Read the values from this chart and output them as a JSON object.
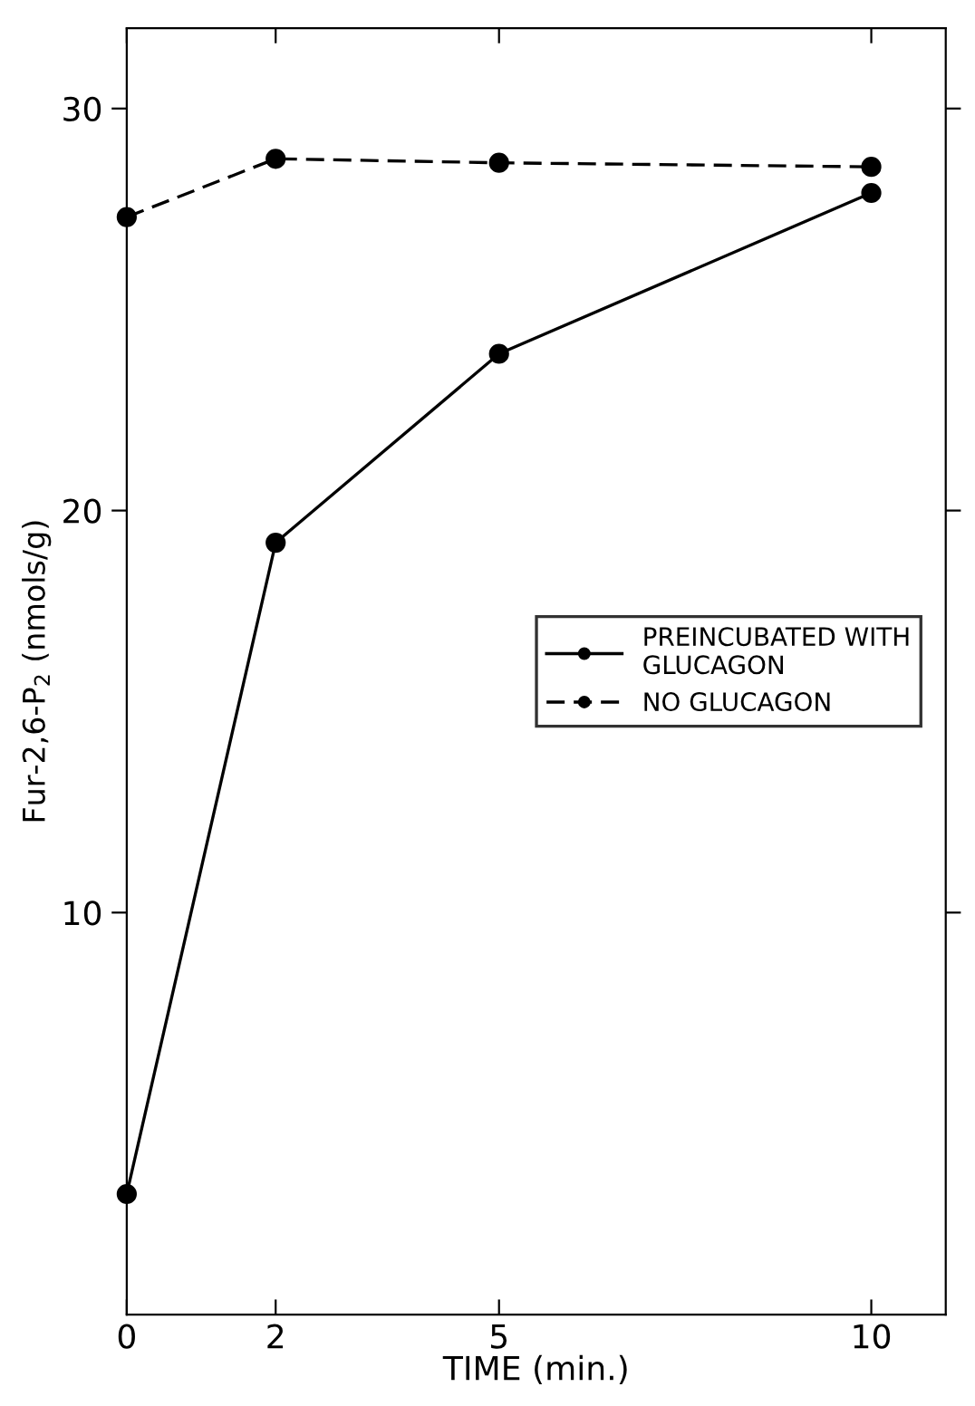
{
  "chart_data": {
    "type": "line",
    "xlabel": "TIME (min.)",
    "ylabel": "Fur-2,6-P$_{2}$ (nmols/g)",
    "x": [
      0,
      2,
      5,
      10
    ],
    "xlim": [
      0,
      11
    ],
    "xticks": [
      0,
      2,
      5,
      10
    ],
    "ylim": [
      0,
      32
    ],
    "yticks": [
      10,
      20,
      30
    ],
    "series": [
      {
        "name": "PREINCUBATED WITH\nGLUCAGON",
        "color": "#000000",
        "line_style": "solid",
        "values": [
          3.0,
          19.2,
          23.9,
          27.9
        ]
      },
      {
        "name": "NO GLUCAGON",
        "color": "#000000",
        "line_style": "dashed",
        "values": [
          27.3,
          28.75,
          28.65,
          28.55
        ]
      }
    ],
    "marker": "circle",
    "legend": "right",
    "grid": false
  }
}
